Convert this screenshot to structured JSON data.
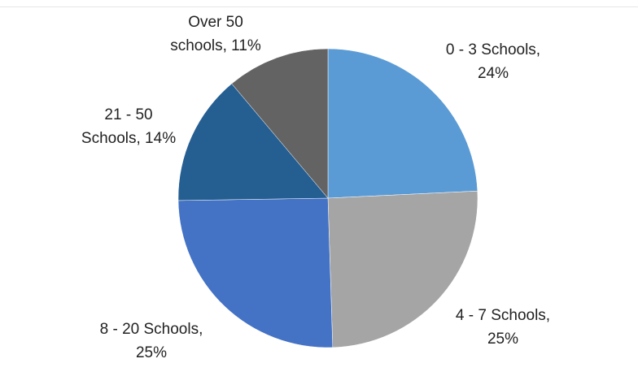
{
  "chart_data": {
    "type": "pie",
    "start_angle_deg": 0,
    "direction": "clockwise",
    "legend": "none",
    "slices": [
      {
        "name": "0 - 3 Schools",
        "value": 24,
        "label": [
          "0 - 3 Schools,",
          "24%"
        ],
        "color": "#5b9bd5"
      },
      {
        "name": "4 - 7 Schools",
        "value": 25,
        "label": [
          "4 - 7 Schools,",
          "25%"
        ],
        "color": "#a5a5a5"
      },
      {
        "name": "8 - 20 Schools",
        "value": 25,
        "label": [
          "8 - 20 Schools,",
          "25%"
        ],
        "color": "#4472c4"
      },
      {
        "name": "21 - 50 Schools",
        "value": 14,
        "label": [
          "21 - 50",
          "Schools, 14%"
        ],
        "color": "#255e91"
      },
      {
        "name": "Over 50 schools",
        "value": 11,
        "label": [
          "Over 50",
          "schools, 11%"
        ],
        "color": "#636363"
      }
    ]
  }
}
